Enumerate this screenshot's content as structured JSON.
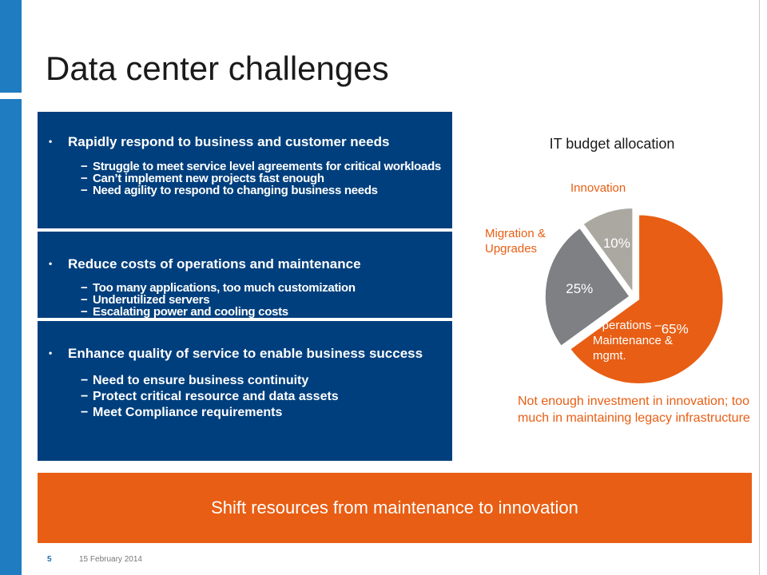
{
  "slide": {
    "title": "Data center challenges",
    "page_number": "5",
    "date": "15 February 2014"
  },
  "colors": {
    "side_bar": "#1f7cc1",
    "panel_blue": "#003f7d",
    "accent_orange": "#e85e14",
    "gray_dark": "#7f8083",
    "gray_light": "#aba8a2"
  },
  "challenges": [
    {
      "heading": "Rapidly respond to business and customer needs",
      "points": [
        "Struggle to meet service level agreements for critical workloads",
        "Can’t implement new projects fast enough",
        "Need agility to respond to changing business needs"
      ]
    },
    {
      "heading": "Reduce costs of operations and maintenance",
      "points": [
        "Too many applications, too much customization",
        "Underutilized servers",
        "Escalating power and cooling costs"
      ]
    },
    {
      "heading": "Enhance quality of service to enable business success",
      "points": [
        "Need to ensure business continuity",
        "Protect critical resource and data assets",
        "Meet Compliance requirements"
      ]
    }
  ],
  "chart_data": {
    "type": "pie",
    "title": "IT budget allocation",
    "slices": [
      {
        "label": "Operations – Maintenance & mgmt.",
        "value": 65,
        "value_label": "65%",
        "color": "#e85e14"
      },
      {
        "label": "Migration & Upgrades",
        "value": 25,
        "value_label": "25%",
        "color": "#7f8083"
      },
      {
        "label": "Innovation",
        "value": 10,
        "value_label": "10%",
        "color": "#aba8a2"
      }
    ],
    "exploded": true,
    "legend": "none"
  },
  "callout": "Not enough investment in innovation; too much in maintaining legacy infrastructure",
  "banner": "Shift resources from maintenance to innovation"
}
